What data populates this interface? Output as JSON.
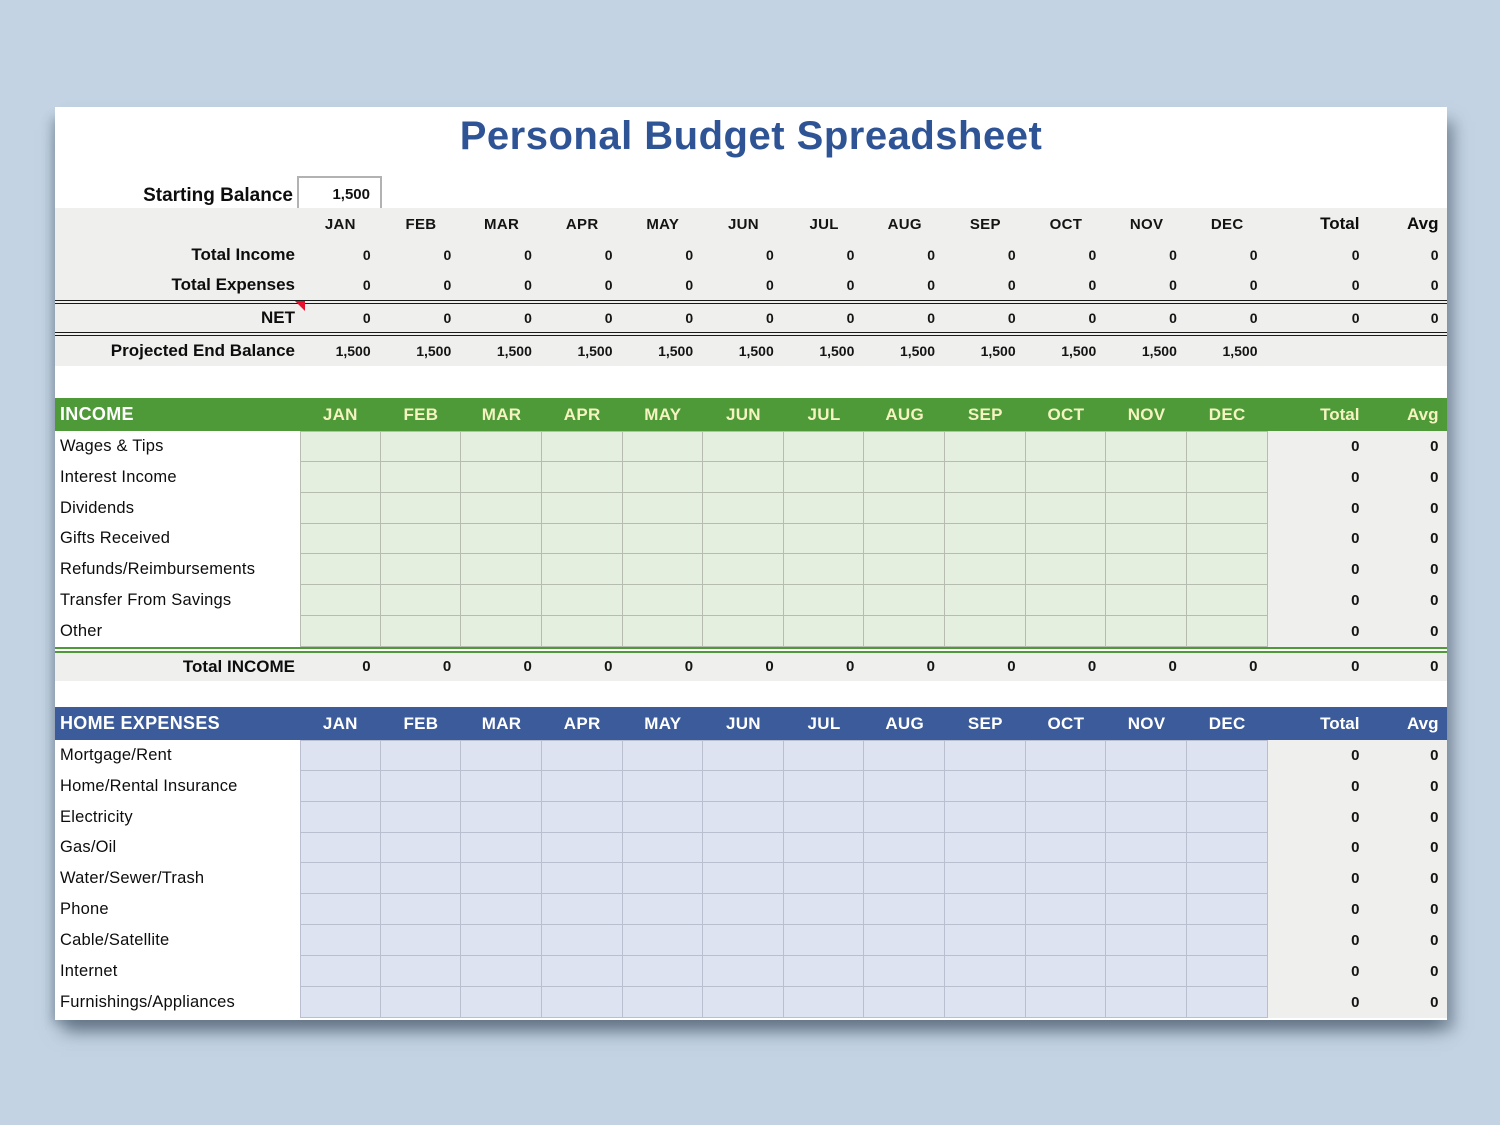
{
  "title": "Personal Budget Spreadsheet",
  "starting_balance": {
    "label": "Starting Balance",
    "value": "1,500"
  },
  "columns": {
    "months": [
      "JAN",
      "FEB",
      "MAR",
      "APR",
      "MAY",
      "JUN",
      "JUL",
      "AUG",
      "SEP",
      "OCT",
      "NOV",
      "DEC"
    ],
    "total": "Total",
    "avg": "Avg"
  },
  "summary": {
    "rows": [
      {
        "label": "Total Income",
        "values": [
          "0",
          "0",
          "0",
          "0",
          "0",
          "0",
          "0",
          "0",
          "0",
          "0",
          "0",
          "0"
        ],
        "total": "0",
        "avg": "0",
        "note": false
      },
      {
        "label": "Total Expenses",
        "values": [
          "0",
          "0",
          "0",
          "0",
          "0",
          "0",
          "0",
          "0",
          "0",
          "0",
          "0",
          "0"
        ],
        "total": "0",
        "avg": "0",
        "note": false
      },
      {
        "label": "NET",
        "values": [
          "0",
          "0",
          "0",
          "0",
          "0",
          "0",
          "0",
          "0",
          "0",
          "0",
          "0",
          "0"
        ],
        "total": "0",
        "avg": "0",
        "note": true
      }
    ],
    "projected": {
      "label": "Projected End Balance",
      "values": [
        "1,500",
        "1,500",
        "1,500",
        "1,500",
        "1,500",
        "1,500",
        "1,500",
        "1,500",
        "1,500",
        "1,500",
        "1,500",
        "1,500"
      ],
      "total": "",
      "avg": ""
    }
  },
  "income": {
    "title": "INCOME",
    "rows": [
      {
        "label": "Wages & Tips",
        "total": "0",
        "avg": "0"
      },
      {
        "label": "Interest Income",
        "total": "0",
        "avg": "0"
      },
      {
        "label": "Dividends",
        "total": "0",
        "avg": "0"
      },
      {
        "label": "Gifts Received",
        "total": "0",
        "avg": "0"
      },
      {
        "label": "Refunds/Reimbursements",
        "total": "0",
        "avg": "0"
      },
      {
        "label": "Transfer From Savings",
        "total": "0",
        "avg": "0"
      },
      {
        "label": "Other",
        "total": "0",
        "avg": "0"
      }
    ],
    "total_row": {
      "label": "Total INCOME",
      "values": [
        "0",
        "0",
        "0",
        "0",
        "0",
        "0",
        "0",
        "0",
        "0",
        "0",
        "0",
        "0"
      ],
      "total": "0",
      "avg": "0"
    }
  },
  "home_expenses": {
    "title": "HOME EXPENSES",
    "rows": [
      {
        "label": "Mortgage/Rent",
        "total": "0",
        "avg": "0"
      },
      {
        "label": "Home/Rental Insurance",
        "total": "0",
        "avg": "0"
      },
      {
        "label": "Electricity",
        "total": "0",
        "avg": "0"
      },
      {
        "label": "Gas/Oil",
        "total": "0",
        "avg": "0"
      },
      {
        "label": "Water/Sewer/Trash",
        "total": "0",
        "avg": "0"
      },
      {
        "label": "Phone",
        "total": "0",
        "avg": "0"
      },
      {
        "label": "Cable/Satellite",
        "total": "0",
        "avg": "0"
      },
      {
        "label": "Internet",
        "total": "0",
        "avg": "0"
      },
      {
        "label": "Furnishings/Appliances",
        "total": "0",
        "avg": "0"
      }
    ]
  },
  "colors": {
    "page_background": "#c3d3e3",
    "title_blue": "#2f5496",
    "income_header_green": "#4e9a38",
    "income_cell_green": "#e5efdf",
    "expense_header_blue": "#3c5b9b",
    "expense_cell_blue": "#dde3f1",
    "summary_band_gray": "#efefee",
    "comment_marker_red": "#e8112d",
    "header_month_text_green_section": "#f5f3c0"
  }
}
